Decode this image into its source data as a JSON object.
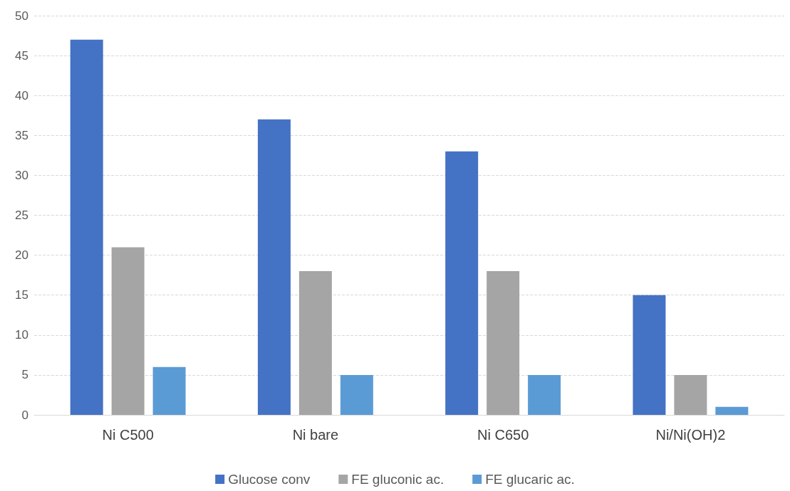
{
  "chart_data": {
    "type": "bar",
    "categories": [
      "Ni C500",
      "Ni bare",
      "Ni C650",
      "Ni/Ni(OH)2"
    ],
    "series": [
      {
        "name": "Glucose conv",
        "color": "#4472c4",
        "values": [
          47,
          37,
          33,
          15
        ]
      },
      {
        "name": "FE gluconic ac.",
        "color": "#a5a5a5",
        "values": [
          21,
          18,
          18,
          5
        ]
      },
      {
        "name": "FE glucaric ac.",
        "color": "#5b9bd5",
        "values": [
          6,
          5,
          5,
          1
        ]
      }
    ],
    "ylim": [
      0,
      50
    ],
    "yticks": [
      0,
      5,
      10,
      15,
      20,
      25,
      30,
      35,
      40,
      45,
      50
    ],
    "grid": "y",
    "legend": "bottom"
  }
}
